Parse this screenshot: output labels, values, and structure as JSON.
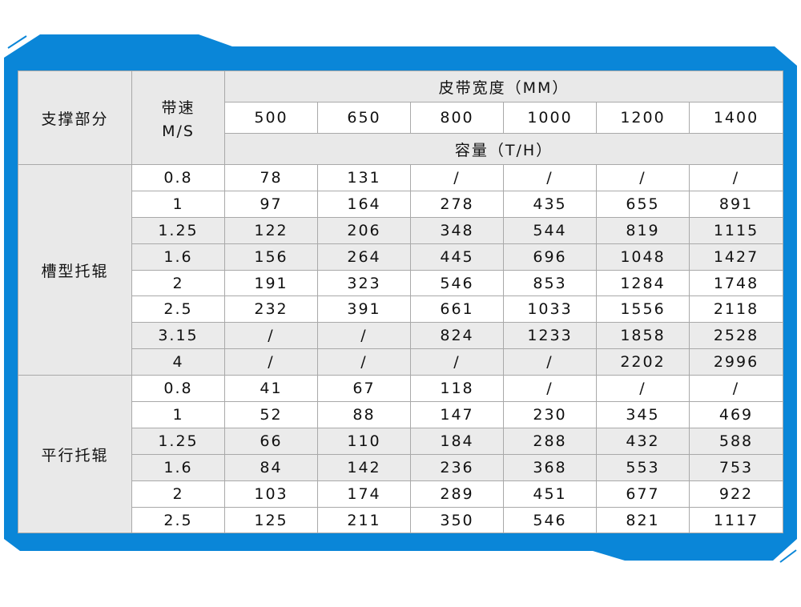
{
  "colors": {
    "frame": "#0a86d8",
    "header_bg": "#e9e9e9",
    "row_alt_bg": "#ebebeb",
    "border": "#a9a9a9"
  },
  "header": {
    "support": "支撑部分",
    "speed_line1": "带速",
    "speed_line2": "M/S",
    "width_title": "皮带宽度（MM）",
    "widths": [
      "500",
      "650",
      "800",
      "1000",
      "1200",
      "1400"
    ],
    "capacity_title": "容量（T/H）"
  },
  "sections": [
    {
      "label": "槽型托辊",
      "rows": [
        {
          "speed": "0.8",
          "values": [
            "78",
            "131",
            "/",
            "/",
            "/",
            "/"
          ],
          "shaded": false
        },
        {
          "speed": "1",
          "values": [
            "97",
            "164",
            "278",
            "435",
            "655",
            "891"
          ],
          "shaded": false
        },
        {
          "speed": "1.25",
          "values": [
            "122",
            "206",
            "348",
            "544",
            "819",
            "1115"
          ],
          "shaded": true
        },
        {
          "speed": "1.6",
          "values": [
            "156",
            "264",
            "445",
            "696",
            "1048",
            "1427"
          ],
          "shaded": true
        },
        {
          "speed": "2",
          "values": [
            "191",
            "323",
            "546",
            "853",
            "1284",
            "1748"
          ],
          "shaded": false
        },
        {
          "speed": "2.5",
          "values": [
            "232",
            "391",
            "661",
            "1033",
            "1556",
            "2118"
          ],
          "shaded": false
        },
        {
          "speed": "3.15",
          "values": [
            "/",
            "/",
            "824",
            "1233",
            "1858",
            "2528"
          ],
          "shaded": true
        },
        {
          "speed": "4",
          "values": [
            "/",
            "/",
            "/",
            "/",
            "2202",
            "2996"
          ],
          "shaded": true
        }
      ]
    },
    {
      "label": "平行托辊",
      "rows": [
        {
          "speed": "0.8",
          "values": [
            "41",
            "67",
            "118",
            "/",
            "/",
            "/"
          ],
          "shaded": false
        },
        {
          "speed": "1",
          "values": [
            "52",
            "88",
            "147",
            "230",
            "345",
            "469"
          ],
          "shaded": false
        },
        {
          "speed": "1.25",
          "values": [
            "66",
            "110",
            "184",
            "288",
            "432",
            "588"
          ],
          "shaded": true
        },
        {
          "speed": "1.6",
          "values": [
            "84",
            "142",
            "236",
            "368",
            "553",
            "753"
          ],
          "shaded": true
        },
        {
          "speed": "2",
          "values": [
            "103",
            "174",
            "289",
            "451",
            "677",
            "922"
          ],
          "shaded": false
        },
        {
          "speed": "2.5",
          "values": [
            "125",
            "211",
            "350",
            "546",
            "821",
            "1117"
          ],
          "shaded": false
        }
      ]
    }
  ]
}
